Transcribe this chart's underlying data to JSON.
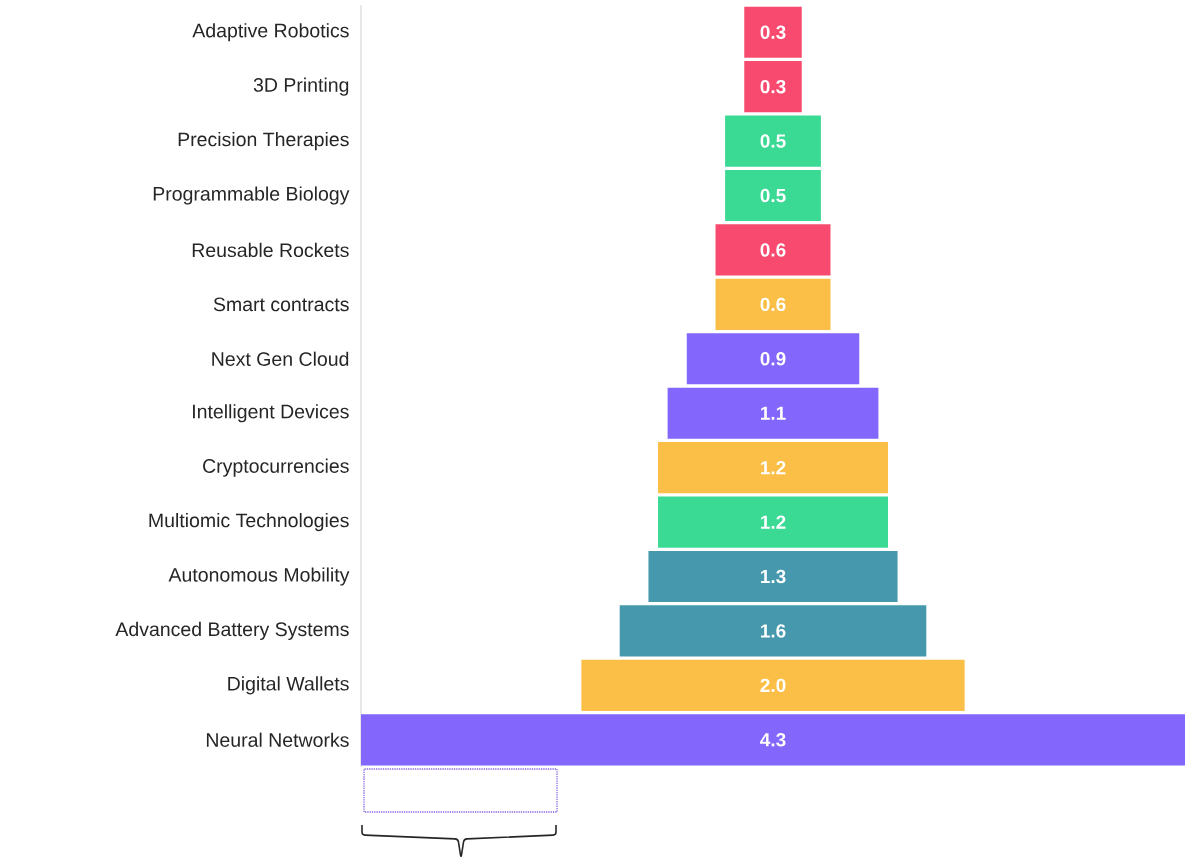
{
  "chart_data": {
    "type": "other",
    "categories": [
      "Adaptive Robotics",
      "3D Printing",
      "Precision Therapies",
      "Programmable Biology",
      "Reusable Rockets",
      "Smart contracts",
      "Next Gen Cloud",
      "Intelligent Devices",
      "Cryptocurrencies",
      "Multiomic Technologies",
      "Autonomous Mobility",
      "Advanced Battery Systems",
      "Digital Wallets",
      "Neural Networks"
    ],
    "values": [
      0.3,
      0.3,
      0.5,
      0.5,
      0.6,
      0.6,
      0.9,
      1.1,
      1.2,
      1.2,
      1.3,
      1.6,
      2.0,
      4.3
    ],
    "colors": [
      "#f84a6f",
      "#f84a6f",
      "#3ad994",
      "#3ad994",
      "#f84a6f",
      "#fbbf47",
      "#8366fb",
      "#8366fb",
      "#fbbf47",
      "#3ad994",
      "#4699ad",
      "#4699ad",
      "#fbbf47",
      "#8366fb"
    ],
    "value_labels": [
      "0.3",
      "0.3",
      "0.5",
      "0.5",
      "0.6",
      "0.6",
      "0.9",
      "1.1",
      "1.2",
      "1.2",
      "1.3",
      "1.6",
      "2.0",
      "4.3"
    ]
  }
}
